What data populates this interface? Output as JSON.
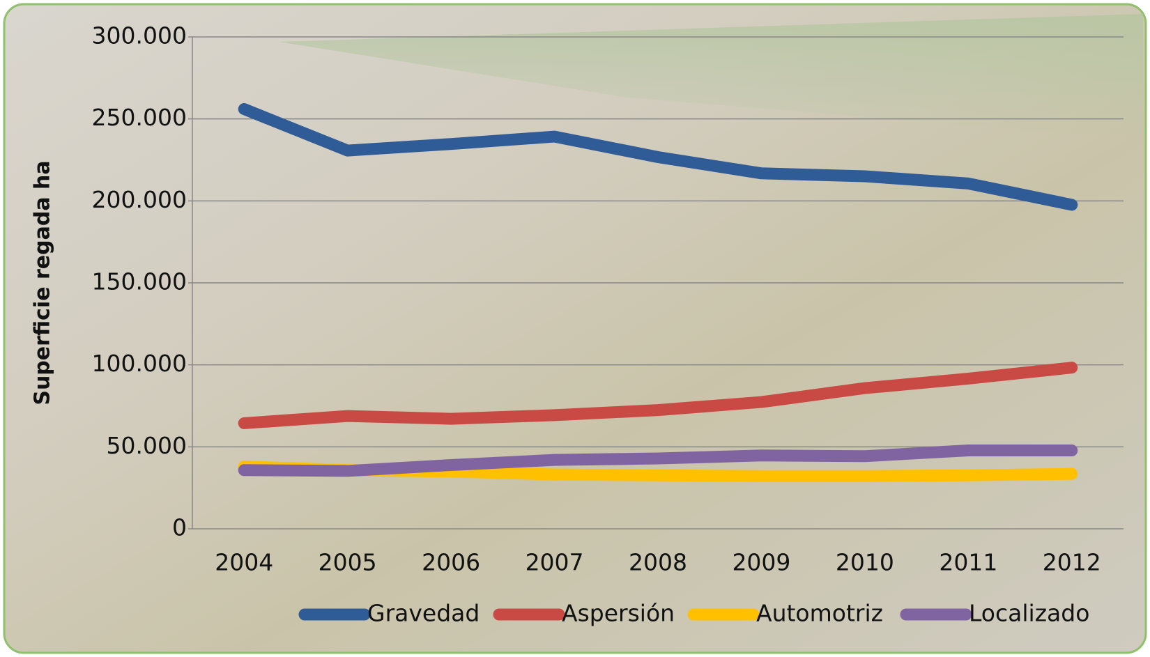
{
  "chart_data": {
    "type": "line",
    "y_label": "Superficie regada ha",
    "categories": [
      "2004",
      "2005",
      "2006",
      "2007",
      "2008",
      "2009",
      "2010",
      "2011",
      "2012"
    ],
    "series": [
      {
        "name": "Gravedad",
        "color": "#2f5b96",
        "values": [
          256000,
          230700,
          234700,
          239200,
          226700,
          216800,
          215000,
          210600,
          197600
        ]
      },
      {
        "name": "Aspersión",
        "color": "#c94a45",
        "values": [
          64400,
          68800,
          67100,
          69300,
          72400,
          77300,
          85800,
          91600,
          98300
        ]
      },
      {
        "name": "Automotriz",
        "color": "#ffc000",
        "values": [
          38000,
          35800,
          34900,
          33100,
          32600,
          32200,
          32200,
          32600,
          33500
        ]
      },
      {
        "name": "Localizado",
        "color": "#8064a2",
        "values": [
          35800,
          35300,
          38900,
          42000,
          42900,
          44700,
          44300,
          47800,
          47800
        ]
      }
    ],
    "ylim": [
      0,
      300000
    ],
    "yticks": [
      0,
      {
        "value": 50000,
        "label": "50.000"
      },
      {
        "value": 100000,
        "label": "100.000"
      },
      {
        "value": 150000,
        "label": "150.000"
      },
      {
        "value": 200000,
        "label": "200.000"
      },
      {
        "value": 250000,
        "label": "250.000"
      },
      {
        "value": 300000,
        "label": "300.000"
      }
    ],
    "grid": true,
    "legend": "bottom"
  }
}
